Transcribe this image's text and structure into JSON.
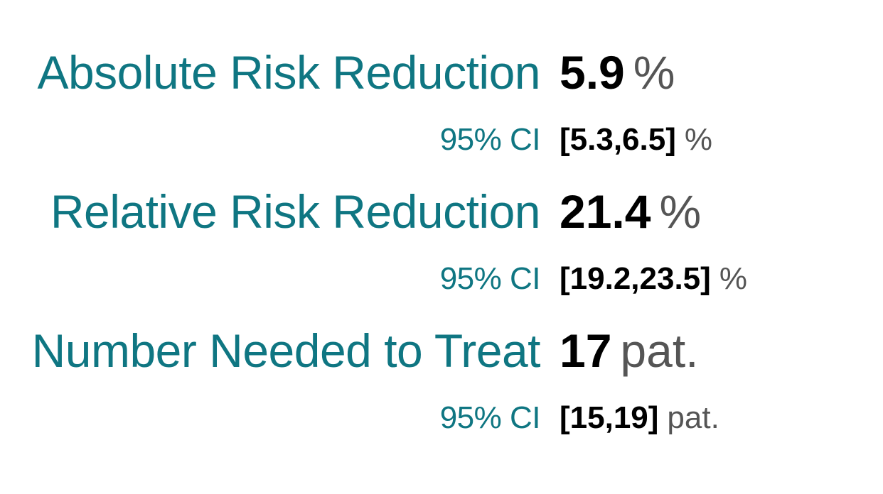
{
  "stats": [
    {
      "label": "Absolute Risk Reduction",
      "value": "5.9",
      "unit": "%",
      "ci_label": "95% CI",
      "ci_value": "[5.3,6.5]",
      "ci_unit": "%"
    },
    {
      "label": "Relative Risk Reduction",
      "value": "21.4",
      "unit": "%",
      "ci_label": "95% CI",
      "ci_value": "[19.2,23.5]",
      "ci_unit": "%"
    },
    {
      "label": "Number Needed to Treat",
      "value": "17",
      "unit": "pat.",
      "ci_label": "95% CI",
      "ci_value": "[15,19]",
      "ci_unit": "pat."
    }
  ],
  "colors": {
    "label": "#0f7682",
    "value": "#000000",
    "unit": "#555555"
  }
}
